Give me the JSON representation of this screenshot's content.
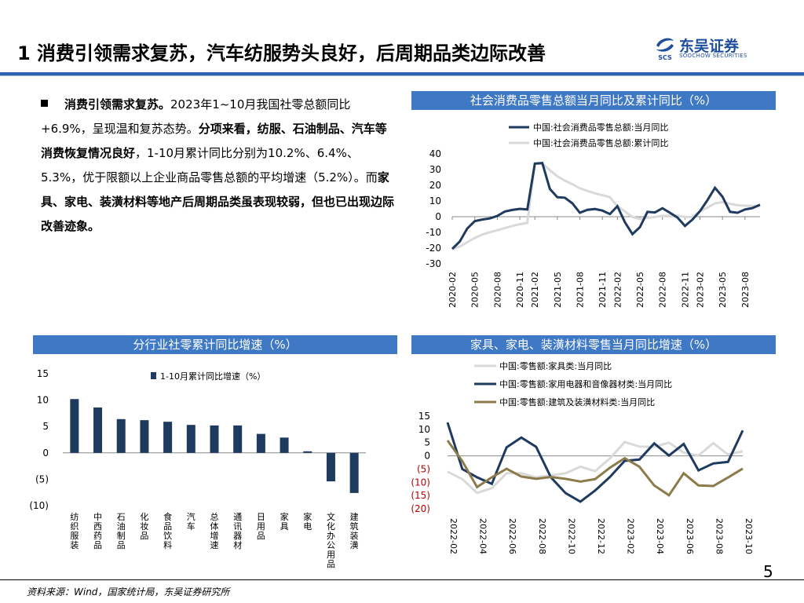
{
  "header": {
    "title": "1 消费引领需求复苏，汽车纺服势头良好，后周期品类边际改善",
    "logo_cn": "东吴证券",
    "logo_en": "SOOCHOW SECURITIES",
    "logo_mark": "SCS"
  },
  "body_text": {
    "p1_bold": "消费引领需求复苏。",
    "p1_rest": "2023年1~10月我国社零总额同比+6.9%，呈现温和复苏态势。",
    "p2_bold": "分项来看，纺服、石油制品、汽车等消费恢复情况良好",
    "p2_rest": "，1-10月累计同比分别为10.2%、6.4%、5.3%，优于限额以上企业商品零售总额的平均增速（5.2%）。而",
    "p3_bold": "家具、家电、装潢材料等地产后周期品类虽表现较弱，但也已出现边际改善迹象。"
  },
  "panels": {
    "top_right_title": "社会消费品零售总额当月同比及累计同比（%）",
    "bottom_left_title": "分行业社零累计同比增速（%）",
    "bottom_right_title": "家具、家电、装潢材料零售当月同比增速（%）"
  },
  "chart_data": [
    {
      "type": "line",
      "id": "retail_total",
      "x": [
        "2020-02",
        "2020-03",
        "2020-04",
        "2020-05",
        "2020-06",
        "2020-07",
        "2020-08",
        "2020-09",
        "2020-10",
        "2020-11",
        "2020-12",
        "2021-02",
        "2021-03",
        "2021-04",
        "2021-05",
        "2021-06",
        "2021-07",
        "2021-08",
        "2021-09",
        "2021-10",
        "2021-11",
        "2021-12",
        "2022-02",
        "2022-03",
        "2022-04",
        "2022-05",
        "2022-06",
        "2022-07",
        "2022-08",
        "2022-09",
        "2022-10",
        "2022-11",
        "2022-12",
        "2023-02",
        "2023-03",
        "2023-04",
        "2023-05",
        "2023-06",
        "2023-07",
        "2023-08",
        "2023-09",
        "2023-10"
      ],
      "tick_labels": [
        "2020-02",
        "2020-05",
        "2020-08",
        "2020-11",
        "2021-02",
        "2021-05",
        "2021-08",
        "2021-11",
        "2022-02",
        "2022-05",
        "2022-08",
        "2022-11",
        "2023-02",
        "2023-05",
        "2023-08"
      ],
      "series": [
        {
          "name": "中国:社会消费品零售总额:当月同比",
          "color": "#1f3a5f",
          "values": [
            -20.5,
            -15.8,
            -7.5,
            -2.8,
            -1.8,
            -1.1,
            0.5,
            3.3,
            4.3,
            5.0,
            4.6,
            33.8,
            34.2,
            17.7,
            12.4,
            12.1,
            8.5,
            2.5,
            4.4,
            4.9,
            3.9,
            1.7,
            6.7,
            -3.5,
            -11.1,
            -6.7,
            3.1,
            2.7,
            5.4,
            2.5,
            -0.5,
            -5.9,
            -1.8,
            3.5,
            10.6,
            18.4,
            12.7,
            3.1,
            2.5,
            4.6,
            5.5,
            7.6
          ]
        },
        {
          "name": "中国:社会消费品零售总额:累计同比",
          "color": "#d9d9d9",
          "values": [
            -20.5,
            -19.0,
            -16.2,
            -13.5,
            -11.4,
            -9.9,
            -8.6,
            -7.2,
            -5.9,
            -4.8,
            -3.9,
            33.8,
            33.9,
            29.6,
            25.7,
            23.0,
            20.7,
            18.1,
            16.4,
            14.9,
            13.7,
            12.5,
            6.7,
            3.3,
            -0.2,
            -1.5,
            -0.7,
            -0.2,
            0.5,
            0.7,
            0.6,
            -0.1,
            -0.2,
            3.5,
            5.8,
            8.5,
            9.3,
            8.2,
            7.3,
            7.0,
            6.8,
            6.9
          ]
        }
      ],
      "ylim": [
        -30,
        40
      ],
      "yticks": [
        -30,
        -20,
        -10,
        0,
        10,
        20,
        30,
        40
      ]
    },
    {
      "type": "bar",
      "id": "industry_cumulative",
      "categories": [
        "纺织服装",
        "中西药品",
        "石油制品",
        "化妆品",
        "食品饮料",
        "汽车",
        "总体增速",
        "通讯器材",
        "日用品",
        "家具",
        "家电",
        "文化办公用品",
        "建筑装潢"
      ],
      "series": [
        {
          "name": "1-10月累计同比增速（%）",
          "color": "#1f3a5f",
          "values": [
            10.2,
            8.6,
            6.4,
            6.2,
            5.9,
            5.3,
            5.2,
            5.2,
            3.6,
            2.9,
            0.3,
            -5.4,
            -7.6
          ]
        }
      ],
      "ylim": [
        -10,
        15
      ],
      "yticks": [
        {
          "v": 15,
          "label": "15"
        },
        {
          "v": 10,
          "label": "10"
        },
        {
          "v": 5,
          "label": "5"
        },
        {
          "v": 0,
          "label": "0"
        },
        {
          "v": -5,
          "label": "(5)"
        },
        {
          "v": -10,
          "label": "(10)"
        }
      ]
    },
    {
      "type": "line",
      "id": "home_related",
      "x": [
        "2022-02",
        "2022-03",
        "2022-04",
        "2022-05",
        "2022-06",
        "2022-07",
        "2022-08",
        "2022-09",
        "2022-10",
        "2022-11",
        "2022-12",
        "2023-01",
        "2023-02",
        "2023-03",
        "2023-04",
        "2023-05",
        "2023-06",
        "2023-07",
        "2023-08",
        "2023-09",
        "2023-10"
      ],
      "tick_labels": [
        "2022-02",
        "2022-04",
        "2022-06",
        "2022-08",
        "2022-10",
        "2022-12",
        "2023-02",
        "2023-04",
        "2023-06",
        "2023-08",
        "2023-10"
      ],
      "series": [
        {
          "name": "中国:零售额:家具类:当月同比",
          "color": "#d9d9d9",
          "values": [
            -6.0,
            -8.8,
            -14.0,
            -12.2,
            -6.6,
            -6.6,
            -8.1,
            -7.4,
            -6.6,
            -4.1,
            -5.8,
            -1.0,
            5.2,
            3.5,
            3.4,
            5.0,
            1.2,
            0.1,
            4.8,
            0.5,
            1.7
          ]
        },
        {
          "name": "中国:零售额:家用电器和音像器材类:当月同比",
          "color": "#1f3a5f",
          "values": [
            12.6,
            -5.0,
            -8.1,
            -10.6,
            3.2,
            6.9,
            3.4,
            -8.1,
            -14.1,
            -17.3,
            -13.1,
            -8.0,
            -1.9,
            -1.4,
            4.7,
            0.1,
            4.5,
            -5.5,
            -2.9,
            -2.3,
            9.6
          ]
        },
        {
          "name": "中国:零售额:建筑及装潢材料类:当月同比",
          "color": "#8c7b4a",
          "values": [
            5.8,
            -2.0,
            -11.8,
            -8.1,
            -4.9,
            -7.8,
            -8.7,
            -8.0,
            -8.7,
            -9.7,
            -8.8,
            -4.5,
            -0.9,
            -4.1,
            -11.2,
            -14.9,
            -6.6,
            -11.2,
            -11.4,
            -8.2,
            -4.8
          ]
        }
      ],
      "ylim": [
        -20,
        15
      ],
      "yticks": [
        {
          "v": 15,
          "label": "15",
          "red": false
        },
        {
          "v": 10,
          "label": "10",
          "red": false
        },
        {
          "v": 5,
          "label": "5",
          "red": false
        },
        {
          "v": 0,
          "label": "0",
          "red": false
        },
        {
          "v": -5,
          "label": "(5)",
          "red": true
        },
        {
          "v": -10,
          "label": "(10)",
          "red": true
        },
        {
          "v": -15,
          "label": "(15)",
          "red": true
        },
        {
          "v": -20,
          "label": "(20)",
          "red": true
        }
      ]
    }
  ],
  "footer": {
    "source": "资料来源：Wind，国家统计局，东吴证券研究所",
    "page": "5"
  }
}
